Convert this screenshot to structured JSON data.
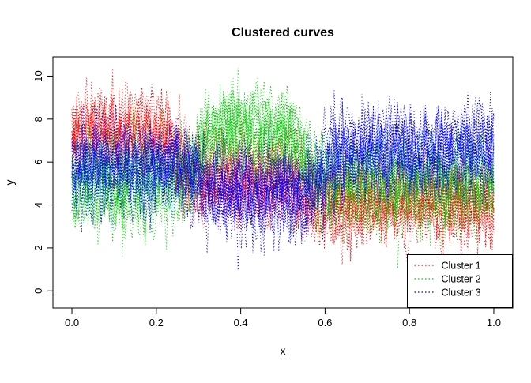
{
  "title": "Clustered curves",
  "chart_data": {
    "type": "line",
    "title": "Clustered curves",
    "xlabel": "x",
    "ylabel": "y",
    "xlim": [
      0,
      1
    ],
    "ylim": [
      0,
      10
    ],
    "xticks": [
      0.0,
      0.2,
      0.4,
      0.6,
      0.8,
      1.0
    ],
    "xtick_labels": [
      "0.0",
      "0.2",
      "0.4",
      "0.6",
      "0.8",
      "1.0"
    ],
    "yticks": [
      0,
      2,
      4,
      6,
      8,
      10
    ],
    "ytick_labels": [
      "0",
      "2",
      "4",
      "6",
      "8",
      "10"
    ],
    "grid": false,
    "line_style": "dotted",
    "frame": "box",
    "legend_position": "bottomright",
    "curves_per_cluster": 14,
    "points_per_curve": 260,
    "curve_offset_sd": 0.5,
    "point_noise_sd": 0.8,
    "transition_width": 0.015,
    "seed": 42,
    "series": [
      {
        "name": "Cluster 1",
        "color": "#FF0000",
        "description": "noisy dotted curves, high on left then lower",
        "x_breaks": [
          0,
          0.25,
          0.55,
          1
        ],
        "mean_levels": [
          7.2,
          5.0,
          4.0
        ]
      },
      {
        "name": "Cluster 2",
        "color": "#00CC00",
        "description": "noisy dotted curves, elevated in middle band",
        "x_breaks": [
          0,
          0.3,
          0.55,
          1
        ],
        "mean_levels": [
          5.0,
          7.4,
          5.0
        ]
      },
      {
        "name": "Cluster 3",
        "color": "#0000FF",
        "description": "noisy dotted curves, high on right",
        "x_breaks": [
          0,
          0.3,
          0.6,
          1
        ],
        "mean_levels": [
          5.8,
          4.6,
          6.6
        ]
      }
    ]
  }
}
